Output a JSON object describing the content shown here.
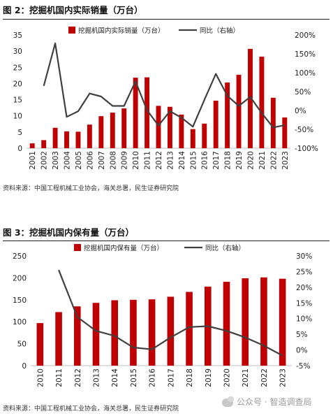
{
  "figures": [
    {
      "title": "图 2：挖掘机国内实际销量（万台）",
      "source": "资料来源：中国工程机械工业协会，海关总署，民生证券研究院"
    },
    {
      "title": "图 3：挖掘机国内保有量（万台）",
      "source": "资料来源：中国工程机械工业协会，海关总署，民生证券研究院"
    }
  ],
  "watermark": "公众号 · 智造调查局",
  "colors": {
    "bar": "#C00000",
    "line": "#404040",
    "text": "#222222"
  },
  "chart_data": [
    {
      "type": "bar",
      "title": "",
      "categories": [
        "2001",
        "2002",
        "2003",
        "2004",
        "2005",
        "2006",
        "2007",
        "2008",
        "2009",
        "2010",
        "2011",
        "2012",
        "2013",
        "2014",
        "2015",
        "2016",
        "2017",
        "2018",
        "2019",
        "2020",
        "2021",
        "2022",
        "2023"
      ],
      "ylim": [
        0,
        35
      ],
      "yticks": [
        "0",
        "5",
        "10",
        "15",
        "20",
        "25",
        "30",
        "35"
      ],
      "y2lim": [
        -100,
        200
      ],
      "y2ticks": [
        "-100%",
        "-50%",
        "0%",
        "50%",
        "100%",
        "150%",
        "200%"
      ],
      "legend": {
        "position": "top",
        "bar_label": "挖掘机国内实际销量（万台）",
        "line_label": "同比（右轴）"
      },
      "series": [
        {
          "name": "挖掘机国内实际销量（万台）",
          "type": "bar",
          "axis": "left",
          "values": [
            1.5,
            2.5,
            6.3,
            5.2,
            5.1,
            7.3,
            9.9,
            11.0,
            12.3,
            21.8,
            21.9,
            13.1,
            12.8,
            10.4,
            5.9,
            7.6,
            14.7,
            20.3,
            22.7,
            30.7,
            28.3,
            15.6,
            9.5
          ]
        },
        {
          "name": "同比（右轴）",
          "type": "line",
          "axis": "right",
          "values": [
            null,
            65,
            178,
            -17,
            -2,
            45,
            37,
            12,
            12,
            77,
            1,
            -40,
            -2,
            -19,
            -43,
            28,
            97,
            39,
            12,
            36,
            -7,
            -45,
            -39
          ]
        }
      ]
    },
    {
      "type": "bar",
      "title": "",
      "categories": [
        "2010",
        "2011",
        "2012",
        "2013",
        "2014",
        "2015",
        "2016",
        "2017",
        "2018",
        "2019",
        "2020",
        "2021",
        "2022",
        "2023"
      ],
      "ylim": [
        0,
        250
      ],
      "yticks": [
        "0",
        "50",
        "100",
        "150",
        "200",
        "250"
      ],
      "y2lim": [
        -5,
        30
      ],
      "y2ticks": [
        "-5%",
        "0%",
        "5%",
        "10%",
        "15%",
        "20%",
        "25%",
        "30%"
      ],
      "legend": {
        "position": "top",
        "bar_label": "挖掘机国内保有量（万台）",
        "line_label": "同比（右轴）"
      },
      "series": [
        {
          "name": "挖掘机国内保有量（万台）",
          "type": "bar",
          "axis": "left",
          "values": [
            97,
            122,
            135,
            143,
            149,
            150,
            151,
            157,
            168,
            180,
            191,
            199,
            201,
            198
          ]
        },
        {
          "name": "同比（右轴）",
          "type": "line",
          "axis": "right",
          "values": [
            null,
            25.5,
            10.5,
            6.1,
            4.5,
            0.8,
            0.2,
            4.0,
            7.3,
            7.6,
            6.1,
            4.0,
            1.4,
            -1.8
          ]
        }
      ]
    }
  ]
}
